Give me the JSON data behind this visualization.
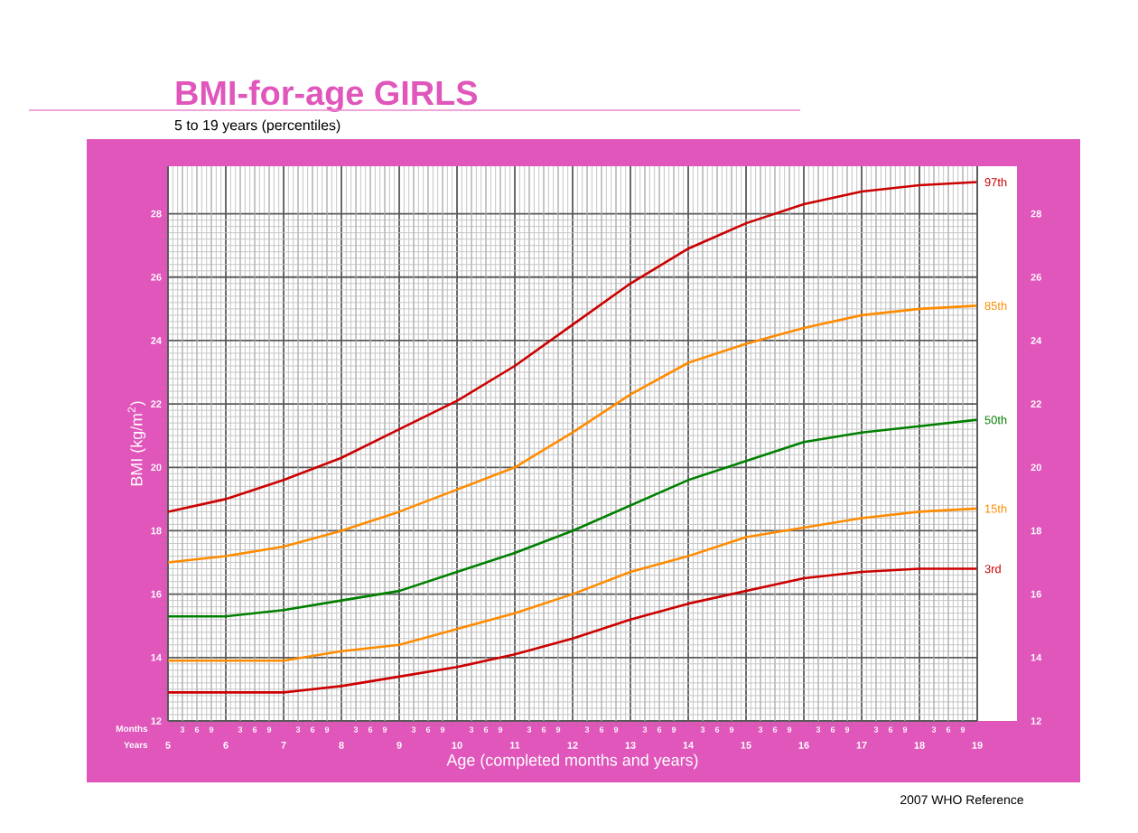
{
  "chart_data": {
    "type": "line",
    "title": "BMI-for-age  GIRLS",
    "subtitle": "5 to 19 years (percentiles)",
    "xlabel": "Age (completed months and years)",
    "ylabel": "BMI (kg/m$^{2}$)",
    "annotations": [
      "Months",
      "Years",
      "2007 WHO Reference",
      "3",
      "6",
      "9",
      "3",
      "6",
      "9",
      "3",
      "6",
      "9",
      "3",
      "6",
      "9",
      "3",
      "6",
      "9",
      "3",
      "6",
      "9",
      "3",
      "6",
      "9",
      "3",
      "6",
      "9",
      "3",
      "6",
      "9",
      "3",
      "6",
      "9",
      "3",
      "6",
      "9",
      "3",
      "6",
      "9",
      "3",
      "6",
      "9",
      "3",
      "6",
      "9"
    ],
    "x": [
      5,
      6,
      7,
      8,
      9,
      10,
      11,
      12,
      13,
      14,
      15,
      16,
      17,
      18,
      19
    ],
    "series": [
      {
        "name": "97th",
        "color": "#cc0000",
        "values": [
          18.6,
          19.0,
          19.6,
          20.3,
          21.2,
          22.1,
          23.2,
          24.5,
          25.8,
          26.9,
          27.7,
          28.3,
          28.7,
          28.9,
          29.0
        ]
      },
      {
        "name": "85th",
        "color": "#ff8c00",
        "values": [
          17.0,
          17.2,
          17.5,
          18.0,
          18.6,
          19.3,
          20.0,
          21.1,
          22.3,
          23.3,
          23.9,
          24.4,
          24.8,
          25.0,
          25.1
        ]
      },
      {
        "name": "50th",
        "color": "#008000",
        "values": [
          15.3,
          15.3,
          15.5,
          15.8,
          16.1,
          16.7,
          17.3,
          18.0,
          18.8,
          19.6,
          20.2,
          20.8,
          21.1,
          21.3,
          21.5
        ]
      },
      {
        "name": "15th",
        "color": "#ff8c00",
        "values": [
          13.9,
          13.9,
          13.9,
          14.2,
          14.4,
          14.9,
          15.4,
          16.0,
          16.7,
          17.2,
          17.8,
          18.1,
          18.4,
          18.6,
          18.7
        ]
      },
      {
        "name": "3rd",
        "color": "#cc0000",
        "values": [
          12.9,
          12.9,
          12.9,
          13.1,
          13.4,
          13.7,
          14.1,
          14.6,
          15.2,
          15.7,
          16.1,
          16.5,
          16.7,
          16.8,
          16.8
        ]
      }
    ],
    "xlim": [
      5,
      19
    ],
    "xticks": [
      5,
      {
        "value": 5.25,
        "label": null
      },
      {
        "value": 5.5,
        "label": null
      },
      {
        "value": 5.75,
        "label": null
      },
      6,
      {
        "value": 6.25,
        "label": null
      },
      {
        "value": 6.5,
        "label": null
      },
      {
        "value": 6.75,
        "label": null
      },
      7,
      {
        "value": 7.25,
        "label": null
      },
      {
        "value": 7.5,
        "label": null
      },
      {
        "value": 7.75,
        "label": null
      },
      8,
      {
        "value": 8.25,
        "label": null
      },
      {
        "value": 8.5,
        "label": null
      },
      {
        "value": 8.75,
        "label": null
      },
      9,
      {
        "value": 9.25,
        "label": null
      },
      {
        "value": 9.5,
        "label": null
      },
      {
        "value": 9.75,
        "label": null
      },
      10,
      {
        "value": 10.25,
        "label": null
      },
      {
        "value": 10.5,
        "label": null
      },
      {
        "value": 10.75,
        "label": null
      },
      11,
      {
        "value": 11.25,
        "label": null
      },
      {
        "value": 11.5,
        "label": null
      },
      {
        "value": 11.75,
        "label": null
      },
      12,
      {
        "value": 12.25,
        "label": null
      },
      {
        "value": 12.5,
        "label": null
      },
      {
        "value": 12.75,
        "label": null
      },
      13,
      {
        "value": 13.25,
        "label": null
      },
      {
        "value": 13.5,
        "label": null
      },
      {
        "value": 13.75,
        "label": null
      },
      14,
      {
        "value": 14.25,
        "label": null
      },
      {
        "value": 14.5,
        "label": null
      },
      {
        "value": 14.75,
        "label": null
      },
      15,
      {
        "value": 15.25,
        "label": null
      },
      {
        "value": 15.5,
        "label": null
      },
      {
        "value": 15.75,
        "label": null
      },
      16,
      {
        "value": 16.25,
        "label": null
      },
      {
        "value": 16.5,
        "label": null
      },
      {
        "value": 16.75,
        "label": null
      },
      17,
      {
        "value": 17.25,
        "label": null
      },
      {
        "value": 17.5,
        "label": null
      },
      {
        "value": 17.75,
        "label": null
      },
      18,
      {
        "value": 18.25,
        "label": null
      },
      {
        "value": 18.5,
        "label": null
      },
      {
        "value": 18.75,
        "label": null
      },
      19
    ],
    "ylim": [
      12,
      29.5
    ],
    "yticks": [
      12,
      14,
      16,
      18,
      20,
      22,
      24,
      26,
      28
    ],
    "y2lim": [
      12,
      29.5
    ],
    "y2ticks": [
      12,
      14,
      16,
      18,
      20,
      22,
      24,
      26,
      28
    ],
    "grid": true,
    "marker": "none",
    "line_style": "solid"
  }
}
